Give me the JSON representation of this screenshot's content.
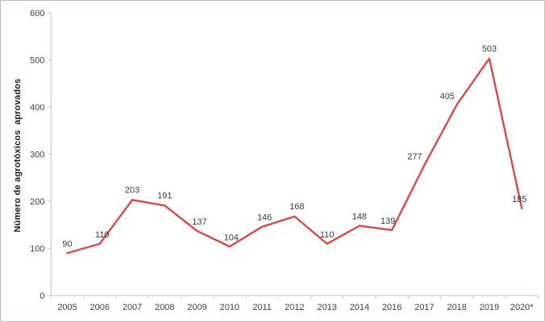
{
  "figure": {
    "background": "#ffffff",
    "border_color": "#b8bdbf"
  },
  "chart_data": {
    "type": "line",
    "title": "",
    "xlabel": "",
    "ylabel": "Número de agrotóxicos  aprovados",
    "categories": [
      "2005",
      "2006",
      "2007",
      "2008",
      "2009",
      "2010",
      "2011",
      "2012",
      "2013",
      "2014",
      "2016",
      "2017",
      "2018",
      "2019",
      "2020*"
    ],
    "values": [
      90,
      110,
      203,
      191,
      137,
      104,
      146,
      168,
      110,
      148,
      139,
      277,
      405,
      503,
      185
    ],
    "ylim": [
      0,
      600
    ],
    "ytick_step": 100,
    "yticks": [
      0,
      100,
      200,
      300,
      400,
      500,
      600
    ],
    "grid": false,
    "legend_position": "none",
    "data_labels": true,
    "line_color": "#d9494c",
    "axis_color": "#c9cdce",
    "tick_label_color": "#3f3f3f",
    "data_label_color": "#3a3a3a"
  }
}
